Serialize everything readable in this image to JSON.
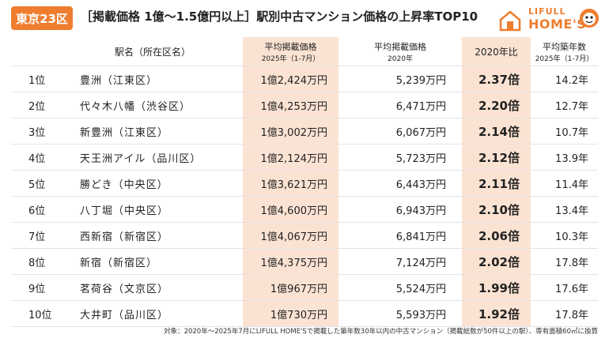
{
  "header": {
    "badge": "東京23区",
    "title": "［掲載価格 1億〜1.5億円以上］駅別中古マンション価格の上昇率TOP10",
    "logo_top": "LIFULL",
    "logo_bottom": "HOME'S",
    "brand_color": "#ee7d2f"
  },
  "table": {
    "columns": {
      "station": "駅名（所在区名）",
      "price2025": "平均掲載価格",
      "price2025_sub": "2025年（1-7月）",
      "price2020": "平均掲載価格",
      "price2020_sub": "2020年",
      "ratio": "2020年比",
      "age": "平均築年数",
      "age_sub": "2025年（1-7月）"
    },
    "rows": [
      {
        "rank": "1位",
        "station": "豊洲（江東区）",
        "price2025": "1億2,424万円",
        "price2020": "5,239万円",
        "ratio": "2.37倍",
        "age": "14.2年"
      },
      {
        "rank": "2位",
        "station": "代々木八幡（渋谷区）",
        "price2025": "1億4,253万円",
        "price2020": "6,471万円",
        "ratio": "2.20倍",
        "age": "12.7年"
      },
      {
        "rank": "3位",
        "station": "新豊洲（江東区）",
        "price2025": "1億3,002万円",
        "price2020": "6,067万円",
        "ratio": "2.14倍",
        "age": "10.7年"
      },
      {
        "rank": "4位",
        "station": "天王洲アイル（品川区）",
        "price2025": "1億2,124万円",
        "price2020": "5,723万円",
        "ratio": "2.12倍",
        "age": "13.9年"
      },
      {
        "rank": "5位",
        "station": "勝どき（中央区）",
        "price2025": "1億3,621万円",
        "price2020": "6,443万円",
        "ratio": "2.11倍",
        "age": "11.4年"
      },
      {
        "rank": "6位",
        "station": "八丁堀（中央区）",
        "price2025": "1億4,600万円",
        "price2020": "6,943万円",
        "ratio": "2.10倍",
        "age": "13.4年"
      },
      {
        "rank": "7位",
        "station": "西新宿（新宿区）",
        "price2025": "1億4,067万円",
        "price2020": "6,841万円",
        "ratio": "2.06倍",
        "age": "10.3年"
      },
      {
        "rank": "8位",
        "station": "新宿（新宿区）",
        "price2025": "1億4,375万円",
        "price2020": "7,124万円",
        "ratio": "2.02倍",
        "age": "17.8年"
      },
      {
        "rank": "9位",
        "station": "茗荷谷（文京区）",
        "price2025": "1億967万円",
        "price2020": "5,524万円",
        "ratio": "1.99倍",
        "age": "17.6年"
      },
      {
        "rank": "10位",
        "station": "大井町（品川区）",
        "price2025": "1億730万円",
        "price2020": "5,593万円",
        "ratio": "1.92倍",
        "age": "17.8年"
      }
    ]
  },
  "footnote": "対象：2020年〜2025年7月にLIFULL HOME'Sで掲載した築年数30年以内の中古マンション（掲載総数が50件以上の駅）、専有面積60㎡に換算"
}
